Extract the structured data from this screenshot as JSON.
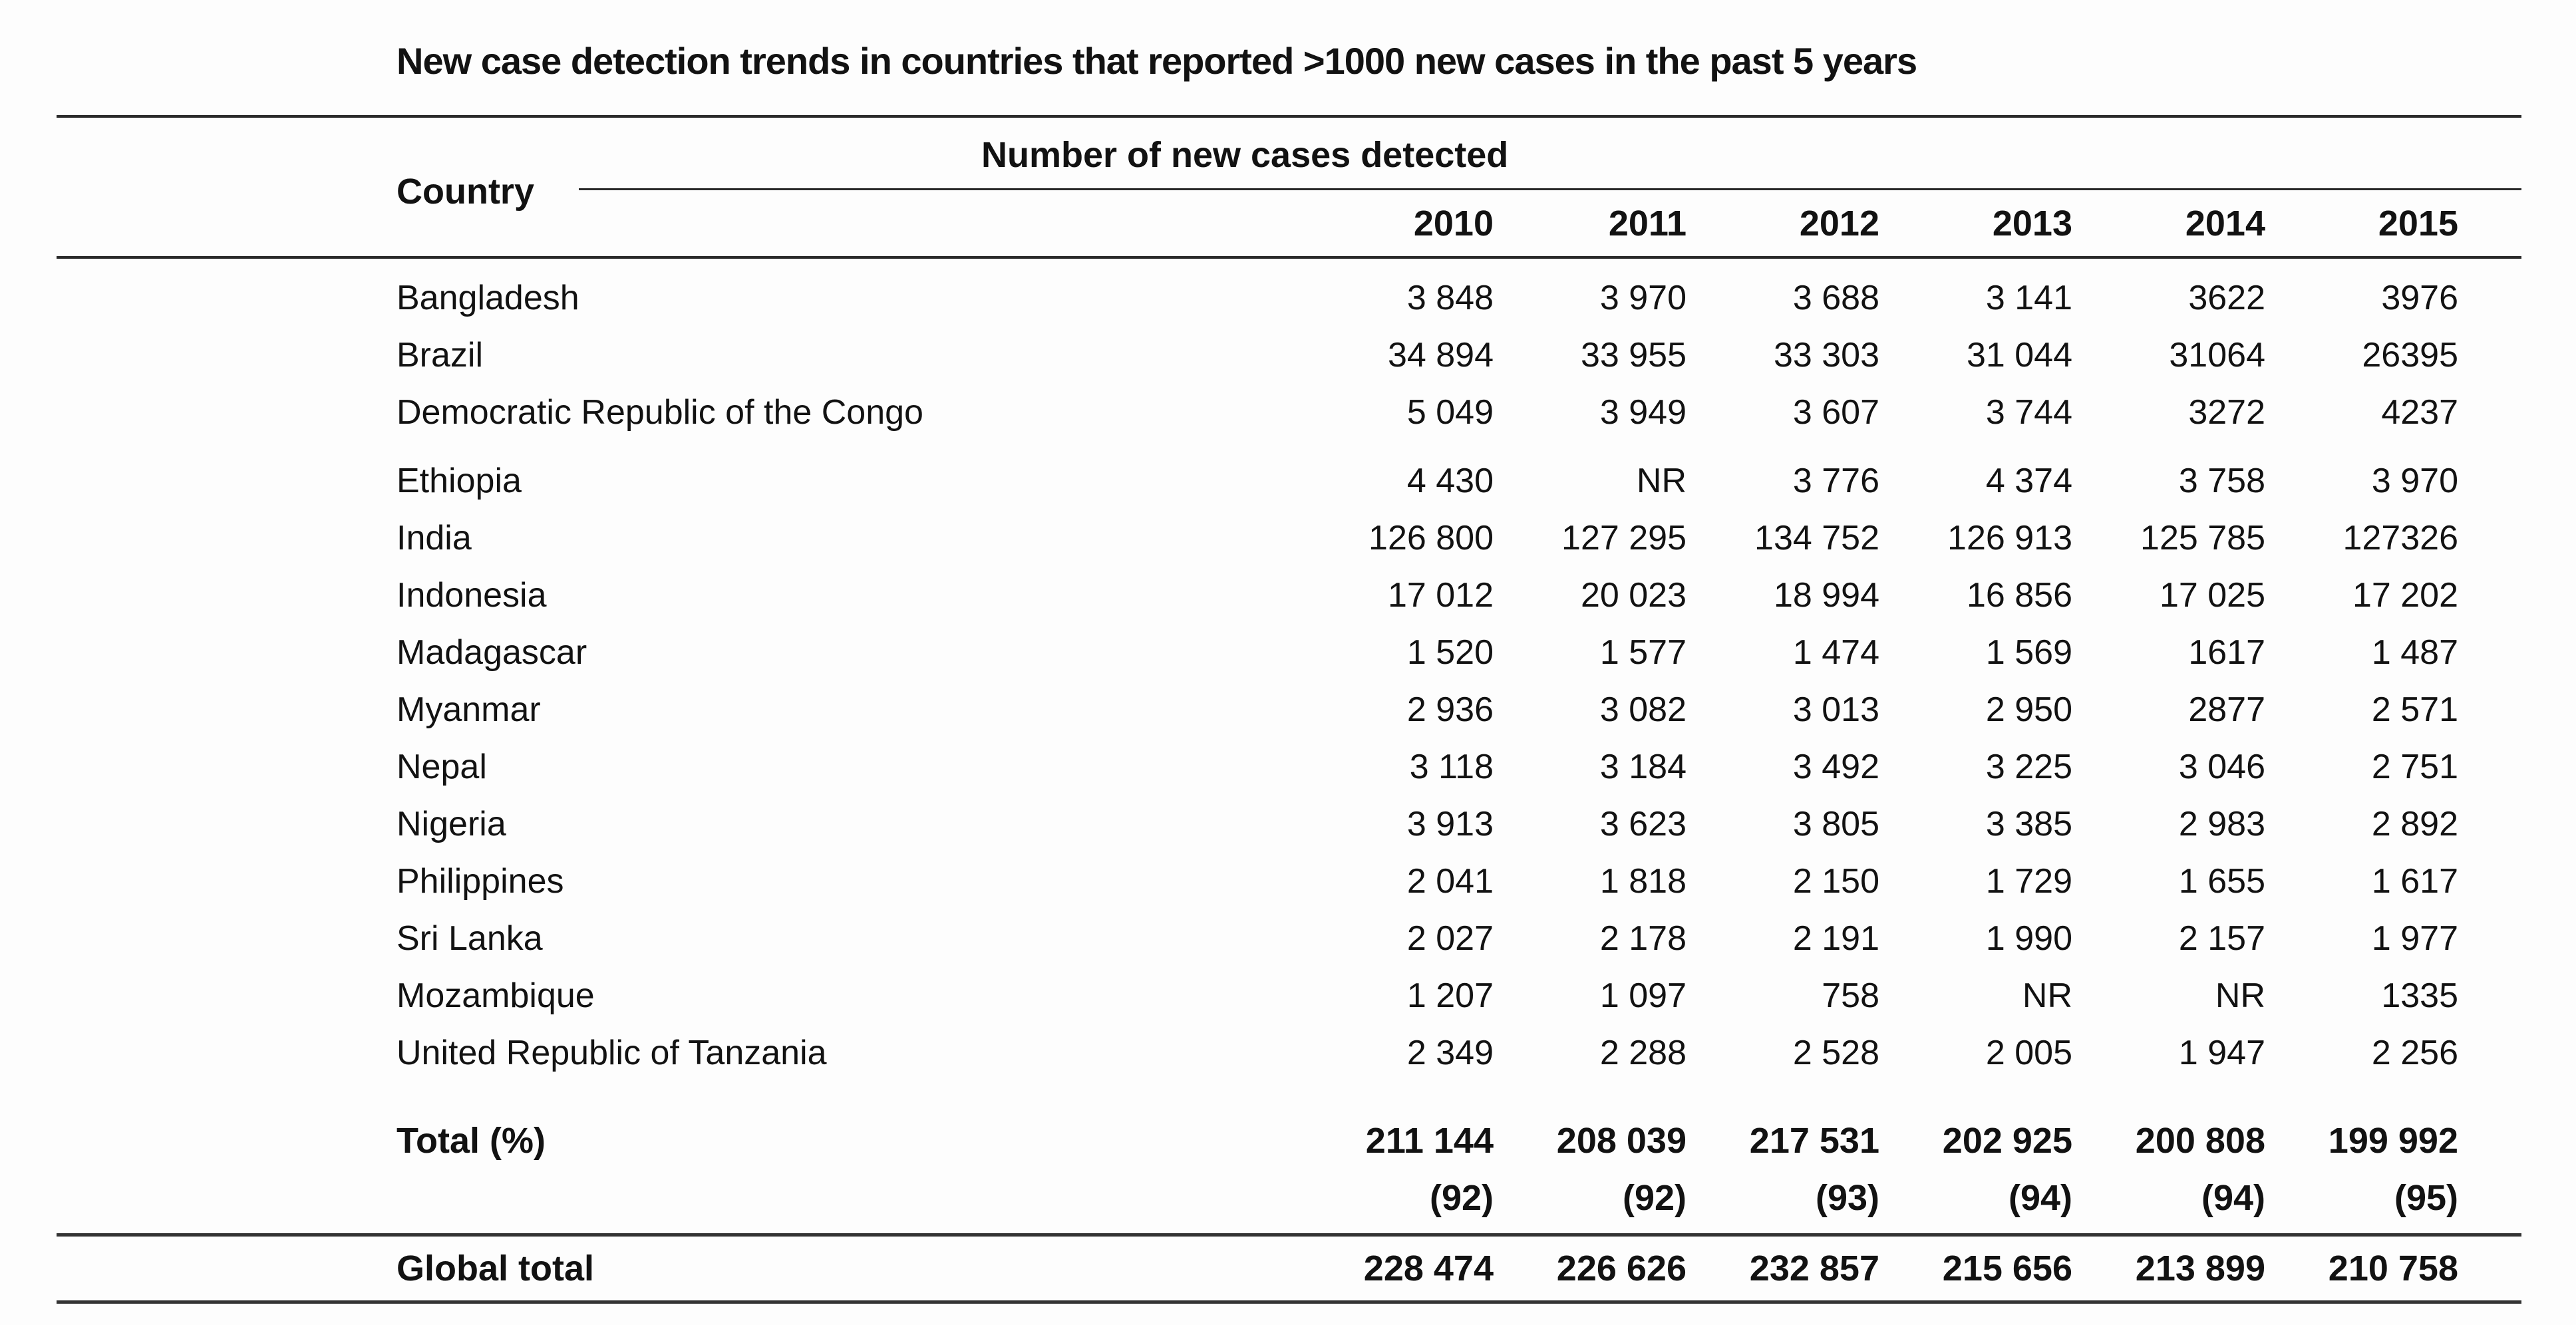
{
  "title": "New case detection trends in countries that reported >1000 new cases in the past 5 years",
  "table": {
    "country_header": "Country",
    "cases_header": "Number of new cases detected",
    "years": [
      "2010",
      "2011",
      "2012",
      "2013",
      "2014",
      "2015"
    ],
    "rows": [
      {
        "name": "Bangladesh",
        "values": [
          "3 848",
          "3 970",
          "3 688",
          "3 141",
          "3622",
          "3976"
        ]
      },
      {
        "name": "Brazil",
        "values": [
          "34 894",
          "33 955",
          "33 303",
          "31 044",
          "31064",
          "26395"
        ]
      },
      {
        "name": "Democratic Republic of the Congo",
        "values": [
          "5 049",
          "3 949",
          "3 607",
          "3 744",
          "3272",
          "4237"
        ]
      },
      {
        "name": "Ethiopia",
        "values": [
          "4 430",
          "NR",
          "3 776",
          "4 374",
          "3 758",
          "3 970"
        ]
      },
      {
        "name": "India",
        "values": [
          "126 800",
          "127 295",
          "134 752",
          "126 913",
          "125 785",
          "127326"
        ]
      },
      {
        "name": "Indonesia",
        "values": [
          "17 012",
          "20 023",
          "18 994",
          "16 856",
          "17 025",
          "17 202"
        ]
      },
      {
        "name": "Madagascar",
        "values": [
          "1 520",
          "1 577",
          "1 474",
          "1 569",
          "1617",
          "1 487"
        ]
      },
      {
        "name": "Myanmar",
        "values": [
          "2 936",
          "3 082",
          "3 013",
          "2 950",
          "2877",
          "2 571"
        ]
      },
      {
        "name": "Nepal",
        "values": [
          "3 118",
          "3 184",
          "3 492",
          "3 225",
          "3 046",
          "2 751"
        ]
      },
      {
        "name": "Nigeria",
        "values": [
          "3 913",
          "3 623",
          "3 805",
          "3 385",
          "2 983",
          "2 892"
        ]
      },
      {
        "name": "Philippines",
        "values": [
          "2 041",
          "1 818",
          "2 150",
          "1 729",
          "1 655",
          "1 617"
        ]
      },
      {
        "name": "Sri Lanka",
        "values": [
          "2 027",
          "2 178",
          "2 191",
          "1 990",
          "2 157",
          "1 977"
        ]
      },
      {
        "name": "Mozambique",
        "values": [
          "1 207",
          "1 097",
          "758",
          "NR",
          "NR",
          "1335"
        ]
      },
      {
        "name": "United Republic of Tanzania",
        "values": [
          "2 349",
          "2 288",
          "2 528",
          "2 005",
          "1 947",
          "2 256"
        ]
      }
    ],
    "total_label": "Total (%)",
    "total_values": [
      "211 144",
      "208 039",
      "217 531",
      "202 925",
      "200 808",
      "199 992"
    ],
    "total_pct": [
      "(92)",
      "(92)",
      "(93)",
      "(94)",
      "(94)",
      "(95)"
    ],
    "global_label": "Global total",
    "global_values": [
      "228 474",
      "226 626",
      "232 857",
      "215 656",
      "213 899",
      "210 758"
    ]
  },
  "colors": {
    "text": "#121212",
    "rule": "#2a2a2a",
    "background": "#fdfdfd"
  }
}
